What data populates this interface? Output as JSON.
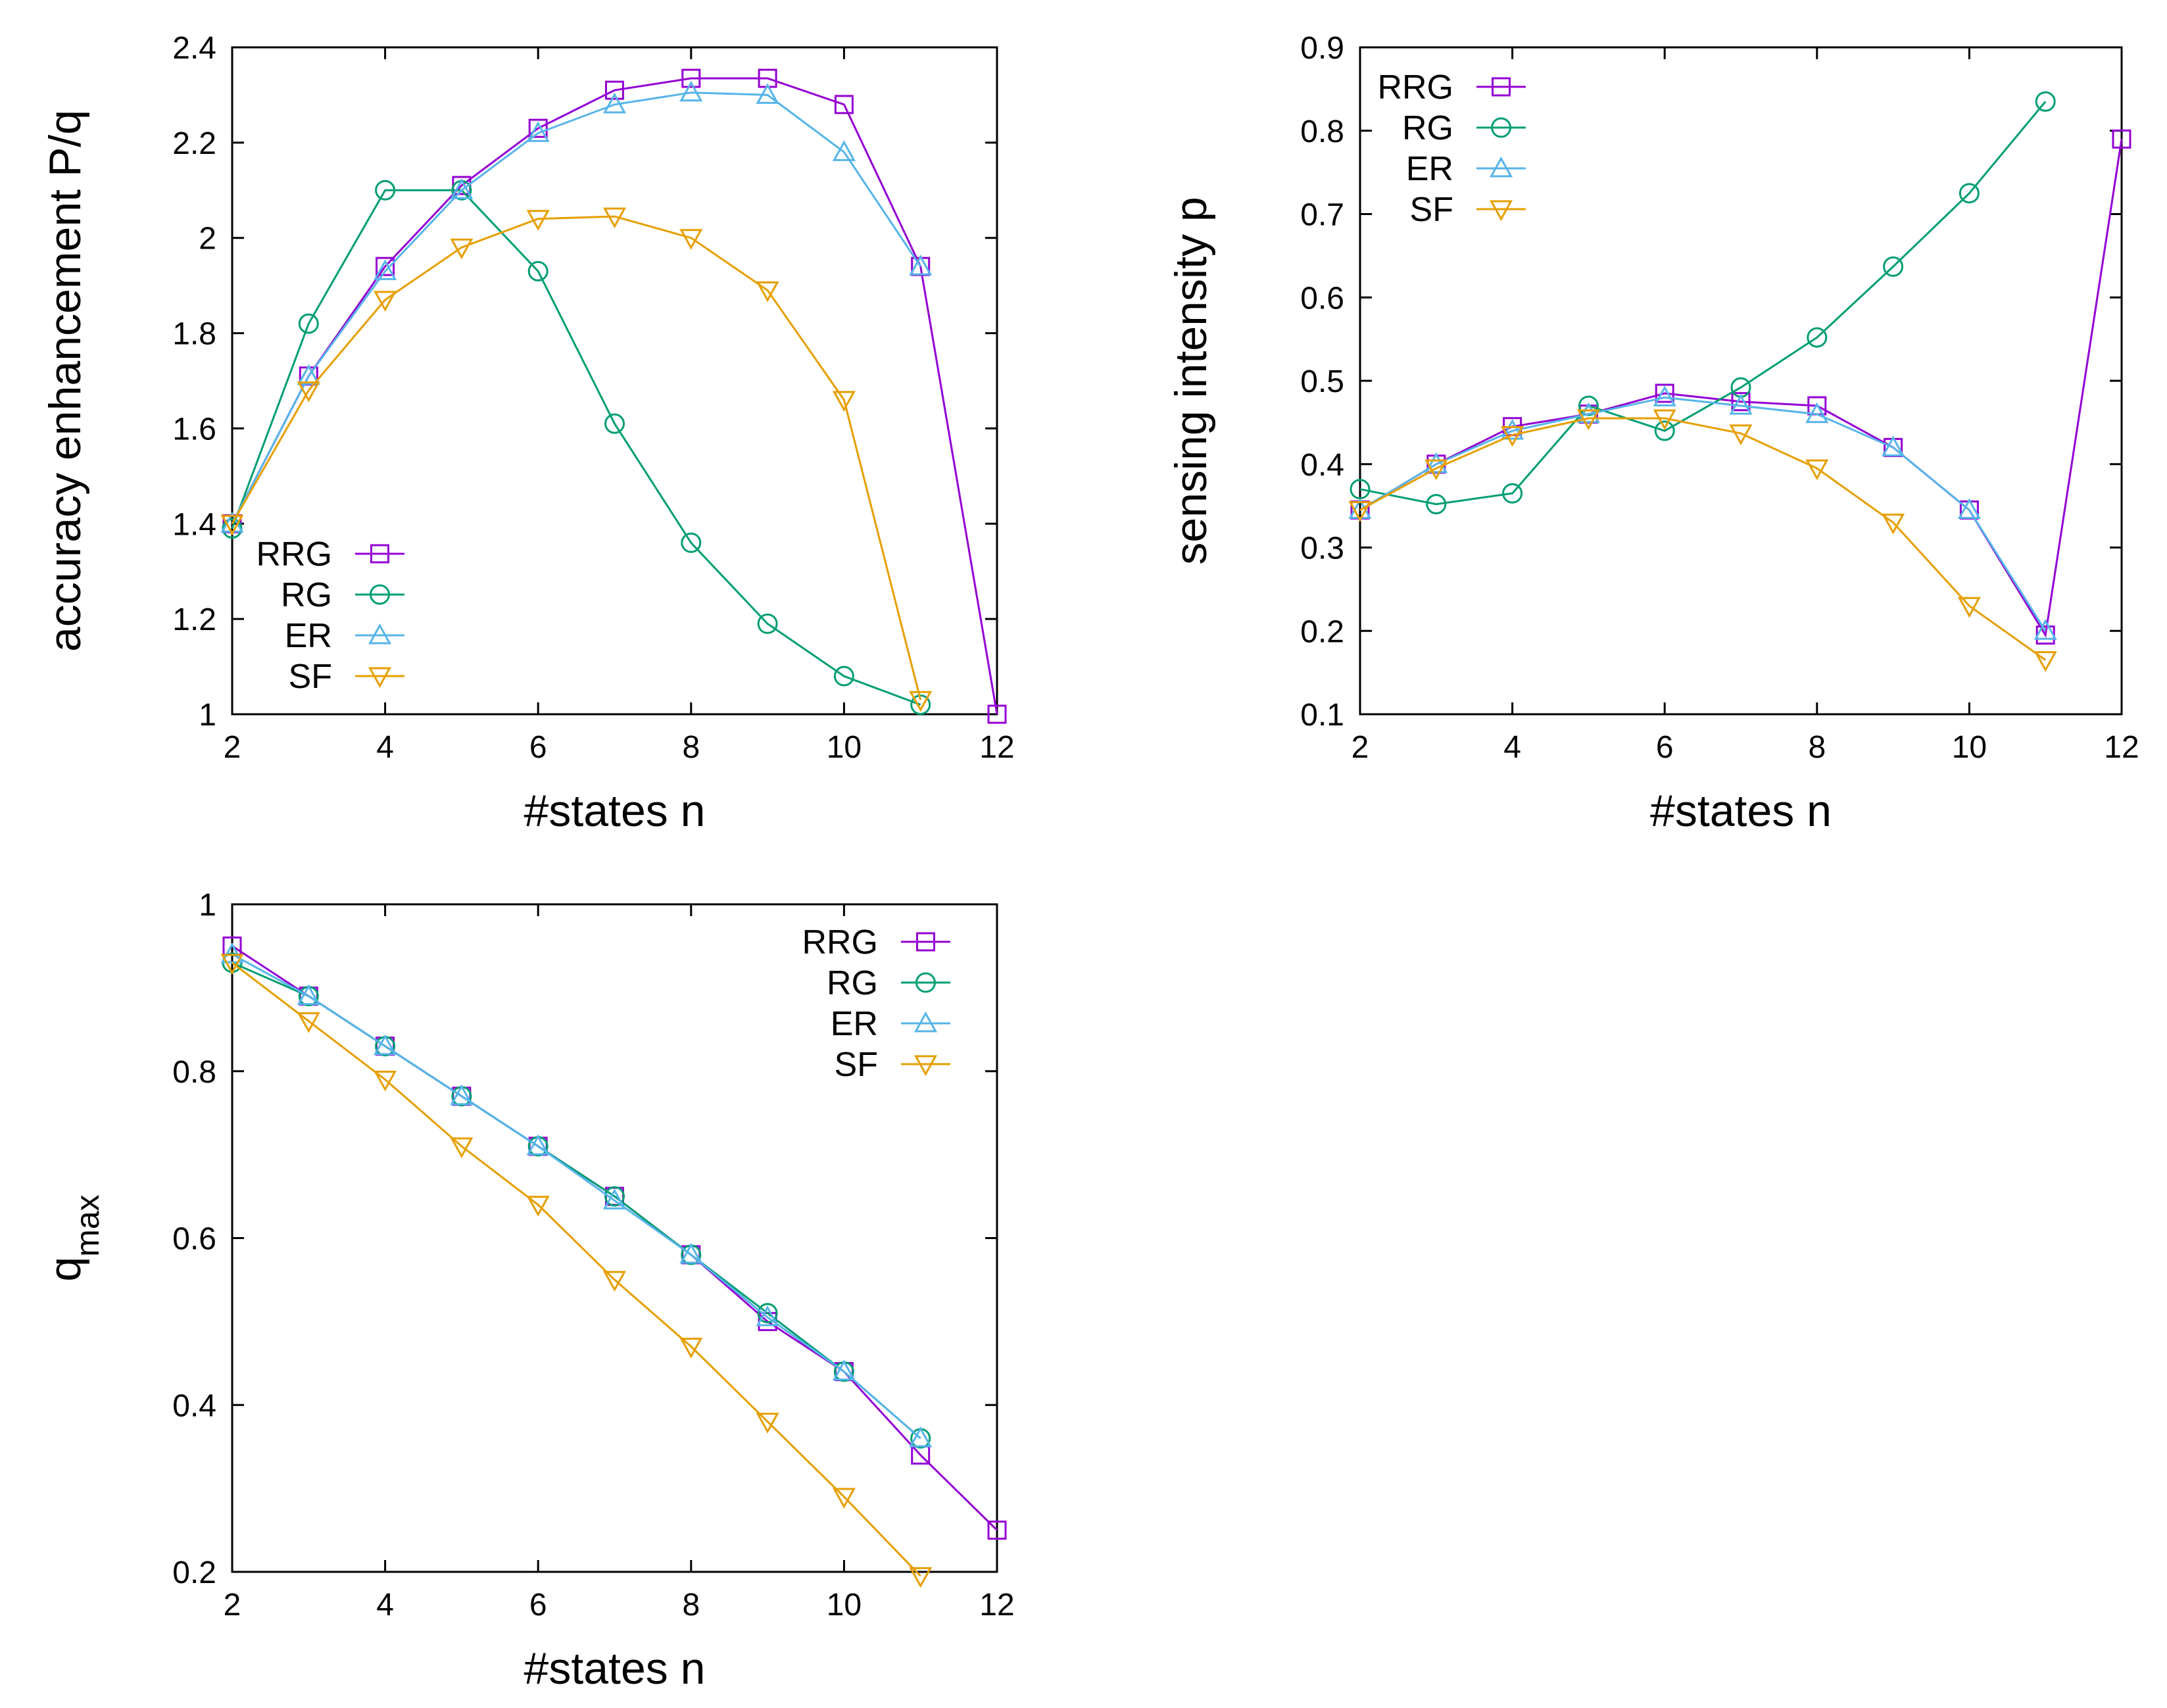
{
  "figure": {
    "title": "",
    "series_colors": {
      "RRG": "#9400d3",
      "RG": "#009e73",
      "ER": "#56b4e9",
      "SF": "#e69f00"
    },
    "series_markers": {
      "RRG": "square",
      "RG": "circle",
      "ER": "triangle-up",
      "SF": "triangle-down"
    }
  },
  "chart_data": [
    {
      "id": "accuracy",
      "type": "line",
      "title": "",
      "xlabel": "#states n",
      "ylabel": "accuracy enhancement P/q",
      "ylabel_sub": "",
      "xlim": [
        2,
        12
      ],
      "ylim": [
        1,
        2.4
      ],
      "xticks": [
        2,
        4,
        6,
        8,
        10,
        12
      ],
      "yticks": [
        1,
        1.2,
        1.4,
        1.6,
        1.8,
        2,
        2.2,
        2.4
      ],
      "ytick_labels": [
        "1",
        "1.2",
        "1.4",
        "1.6",
        "1.8",
        "2",
        "2.2",
        "2.4"
      ],
      "legend_position": "bottom-left",
      "series": [
        {
          "name": "RRG",
          "x": [
            2,
            3,
            4,
            5,
            6,
            7,
            8,
            9,
            10,
            11,
            12
          ],
          "values": [
            1.4,
            1.71,
            1.94,
            2.11,
            2.23,
            2.31,
            2.335,
            2.335,
            2.28,
            1.94,
            1.0
          ]
        },
        {
          "name": "RG",
          "x": [
            2,
            3,
            4,
            5,
            6,
            7,
            8,
            9,
            10,
            11
          ],
          "values": [
            1.39,
            1.82,
            2.1,
            2.1,
            1.93,
            1.61,
            1.36,
            1.19,
            1.08,
            1.02
          ]
        },
        {
          "name": "ER",
          "x": [
            2,
            3,
            4,
            5,
            6,
            7,
            8,
            9,
            10,
            11
          ],
          "values": [
            1.4,
            1.71,
            1.93,
            2.1,
            2.22,
            2.28,
            2.305,
            2.3,
            2.18,
            1.94
          ]
        },
        {
          "name": "SF",
          "x": [
            2,
            3,
            4,
            5,
            6,
            7,
            8,
            9,
            10,
            11
          ],
          "values": [
            1.4,
            1.68,
            1.87,
            1.98,
            2.04,
            2.045,
            2.0,
            1.89,
            1.66,
            1.03
          ]
        }
      ]
    },
    {
      "id": "sensing",
      "type": "line",
      "title": "",
      "xlabel": "#states n",
      "ylabel": "sensing intensity p",
      "ylabel_sub": "",
      "xlim": [
        2,
        12
      ],
      "ylim": [
        0.1,
        0.9
      ],
      "xticks": [
        2,
        4,
        6,
        8,
        10,
        12
      ],
      "yticks": [
        0.1,
        0.2,
        0.3,
        0.4,
        0.5,
        0.6,
        0.7,
        0.8,
        0.9
      ],
      "ytick_labels": [
        "0.1",
        "0.2",
        "0.3",
        "0.4",
        "0.5",
        "0.6",
        "0.7",
        "0.8",
        "0.9"
      ],
      "legend_position": "top-left",
      "series": [
        {
          "name": "RRG",
          "x": [
            2,
            3,
            4,
            5,
            6,
            7,
            8,
            9,
            10,
            11,
            12
          ],
          "values": [
            0.345,
            0.4,
            0.445,
            0.46,
            0.485,
            0.475,
            0.47,
            0.42,
            0.345,
            0.195,
            0.79
          ]
        },
        {
          "name": "RG",
          "x": [
            2,
            3,
            4,
            5,
            6,
            7,
            8,
            9,
            10,
            11
          ],
          "values": [
            0.37,
            0.352,
            0.365,
            0.47,
            0.44,
            0.492,
            0.552,
            0.637,
            0.725,
            0.835
          ]
        },
        {
          "name": "ER",
          "x": [
            2,
            3,
            4,
            5,
            6,
            7,
            8,
            9,
            10,
            11
          ],
          "values": [
            0.345,
            0.4,
            0.44,
            0.46,
            0.48,
            0.47,
            0.46,
            0.42,
            0.345,
            0.2
          ]
        },
        {
          "name": "SF",
          "x": [
            2,
            3,
            4,
            5,
            6,
            7,
            8,
            9,
            10,
            11
          ],
          "values": [
            0.345,
            0.395,
            0.435,
            0.455,
            0.455,
            0.437,
            0.395,
            0.33,
            0.23,
            0.165
          ]
        }
      ]
    },
    {
      "id": "qmax",
      "type": "line",
      "title": "",
      "xlabel": "#states n",
      "ylabel": "q",
      "ylabel_sub": "max",
      "xlim": [
        2,
        12
      ],
      "ylim": [
        0.2,
        1.0
      ],
      "xticks": [
        2,
        4,
        6,
        8,
        10,
        12
      ],
      "yticks": [
        0.2,
        0.4,
        0.6,
        0.8,
        1.0
      ],
      "ytick_labels": [
        "0.2",
        "0.4",
        "0.6",
        "0.8",
        "1"
      ],
      "legend_position": "top-right",
      "series": [
        {
          "name": "RRG",
          "x": [
            2,
            3,
            4,
            5,
            6,
            7,
            8,
            9,
            10,
            11,
            12
          ],
          "values": [
            0.95,
            0.89,
            0.83,
            0.77,
            0.71,
            0.65,
            0.58,
            0.5,
            0.44,
            0.34,
            0.25
          ]
        },
        {
          "name": "RG",
          "x": [
            2,
            3,
            4,
            5,
            6,
            7,
            8,
            9,
            10,
            11
          ],
          "values": [
            0.93,
            0.89,
            0.83,
            0.77,
            0.71,
            0.65,
            0.58,
            0.51,
            0.44,
            0.36
          ]
        },
        {
          "name": "ER",
          "x": [
            2,
            3,
            4,
            5,
            6,
            7,
            8,
            9,
            10,
            11
          ],
          "values": [
            0.94,
            0.89,
            0.83,
            0.77,
            0.71,
            0.645,
            0.58,
            0.505,
            0.44,
            0.36
          ]
        },
        {
          "name": "SF",
          "x": [
            2,
            3,
            4,
            5,
            6,
            7,
            8,
            9,
            10,
            11
          ],
          "values": [
            0.93,
            0.86,
            0.79,
            0.71,
            0.64,
            0.55,
            0.47,
            0.38,
            0.29,
            0.195
          ]
        }
      ]
    }
  ]
}
